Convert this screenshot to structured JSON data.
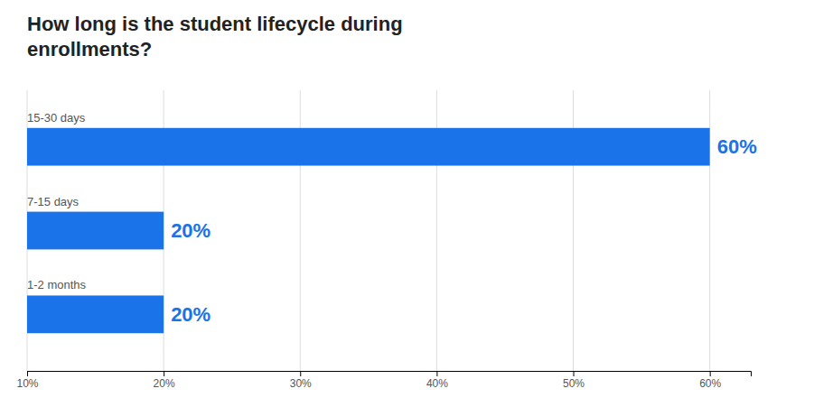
{
  "chart_data": {
    "type": "bar",
    "orientation": "horizontal",
    "title": "How long is the student lifecycle during\nenrollments?",
    "categories": [
      "15-30 days",
      "7-15 days",
      "1-2 months"
    ],
    "values": [
      60,
      20,
      20
    ],
    "value_labels": [
      "60%",
      "20%",
      "20%"
    ],
    "data_labels": true,
    "color": "#1a73e8",
    "xlim": [
      10,
      63
    ],
    "xticks": [
      {
        "value": 10,
        "label": "10%"
      },
      {
        "value": 20,
        "label": "20%"
      },
      {
        "value": 30,
        "label": "30%"
      },
      {
        "value": 40,
        "label": "40%"
      },
      {
        "value": 50,
        "label": "50%"
      },
      {
        "value": 60,
        "label": "60%"
      }
    ],
    "grid": true
  }
}
